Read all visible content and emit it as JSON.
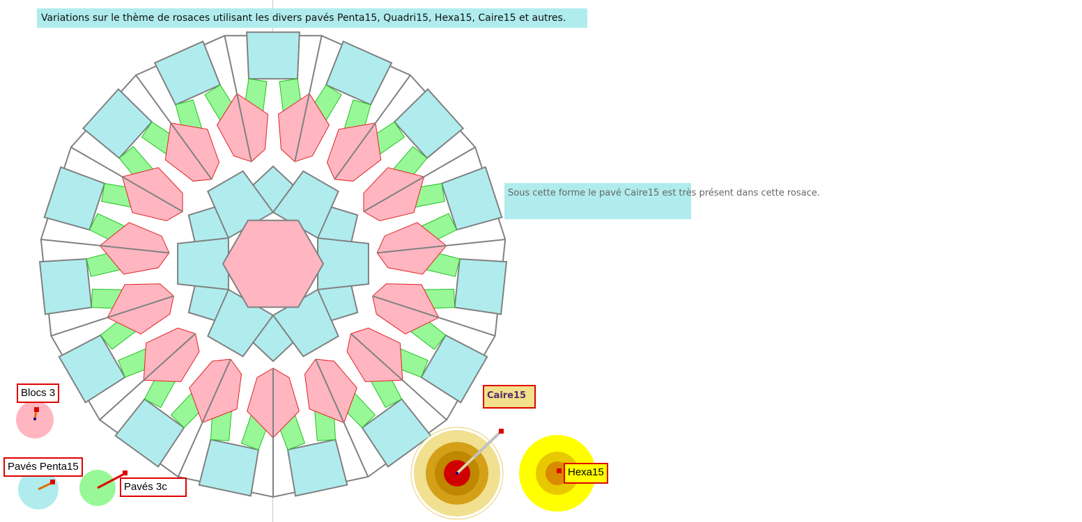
{
  "title": "Variations sur le thème de rosaces utilisant les divers pavés Penta15, Quadri15, Hexa15, Caire15 et autres.",
  "note": "Sous cette forme le pavé Caire15 est très présent dans cette rosace.",
  "buttons": {
    "blocs3": "Blocs 3",
    "paves_penta15": "Pavés Penta15",
    "paves_3c": "Pavés 3c",
    "caire15": "Caire15",
    "hexa15": "Hexa15"
  },
  "colors": {
    "cyan": "#b0eced",
    "green": "#98f898",
    "pink": "#ffb6c1",
    "outline": "#808080",
    "accent_red": "#e00000",
    "yellow": "#ffff00"
  }
}
